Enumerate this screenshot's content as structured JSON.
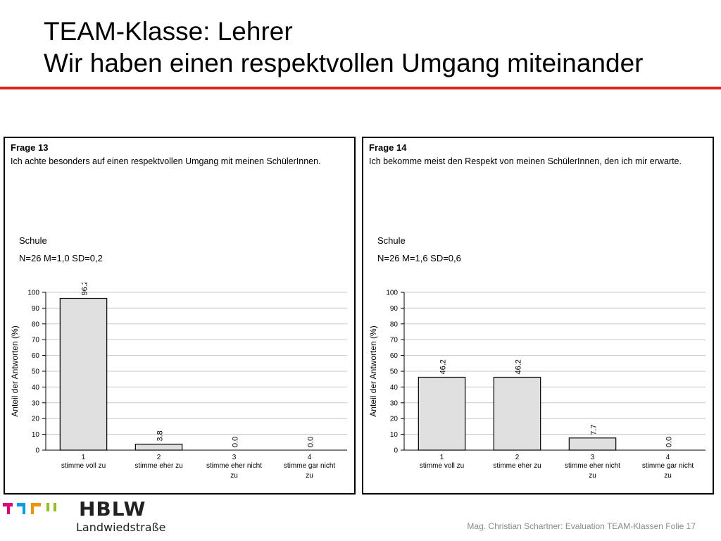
{
  "slide": {
    "title_line1": "TEAM-Klasse: Lehrer",
    "title_line2": "Wir haben einen respektvollen Umgang miteinander",
    "accent_color": "#d9251c"
  },
  "panels": [
    {
      "frage": "Frage 13",
      "question": "Ich achte besonders auf einen respektvollen Umgang mit meinen SchülerInnen.",
      "group": "Schule",
      "stats": "N=26 M=1,0 SD=0,2"
    },
    {
      "frage": "Frage 14",
      "question": "Ich bekomme meist den Respekt von meinen SchülerInnen, den ich mir erwarte.",
      "group": "Schule",
      "stats": "N=26 M=1,6 SD=0,6"
    }
  ],
  "chart_data": [
    {
      "type": "bar",
      "ylabel": "Anteil der Antworten (%)",
      "ylim": [
        0,
        100
      ],
      "yticks": [
        0,
        10,
        20,
        30,
        40,
        50,
        60,
        70,
        80,
        90,
        100
      ],
      "grid": true,
      "categories": [
        {
          "num": "1",
          "line1": "stimme voll zu",
          "line2": ""
        },
        {
          "num": "2",
          "line1": "stimme eher zu",
          "line2": ""
        },
        {
          "num": "3",
          "line1": "stimme eher nicht",
          "line2": "zu"
        },
        {
          "num": "4",
          "line1": "stimme gar nicht",
          "line2": "zu"
        }
      ],
      "values": [
        96.2,
        3.8,
        0.0,
        0.0
      ],
      "value_labels": [
        "96.2",
        "3.8",
        "0.0",
        "0.0"
      ],
      "bar_color": "#e0e0e0"
    },
    {
      "type": "bar",
      "ylabel": "Anteil der Antworten (%)",
      "ylim": [
        0,
        100
      ],
      "yticks": [
        0,
        10,
        20,
        30,
        40,
        50,
        60,
        70,
        80,
        90,
        100
      ],
      "grid": true,
      "categories": [
        {
          "num": "1",
          "line1": "stimme voll zu",
          "line2": ""
        },
        {
          "num": "2",
          "line1": "stimme eher zu",
          "line2": ""
        },
        {
          "num": "3",
          "line1": "stimme eher nicht",
          "line2": "zu"
        },
        {
          "num": "4",
          "line1": "stimme gar nicht",
          "line2": "zu"
        }
      ],
      "values": [
        46.2,
        46.2,
        7.7,
        0.0
      ],
      "value_labels": [
        "46.2",
        "46.2",
        "7.7",
        "0.0"
      ],
      "bar_color": "#e0e0e0"
    }
  ],
  "logo": {
    "name": "HBLW",
    "subtitle": "Landwiedstraße",
    "colors": [
      "#e4007c",
      "#00a0e3",
      "#f39200",
      "#95c11f"
    ]
  },
  "footer": {
    "text": "Mag. Christian Schartner: Evaluation TEAM-Klassen Folie 17"
  }
}
